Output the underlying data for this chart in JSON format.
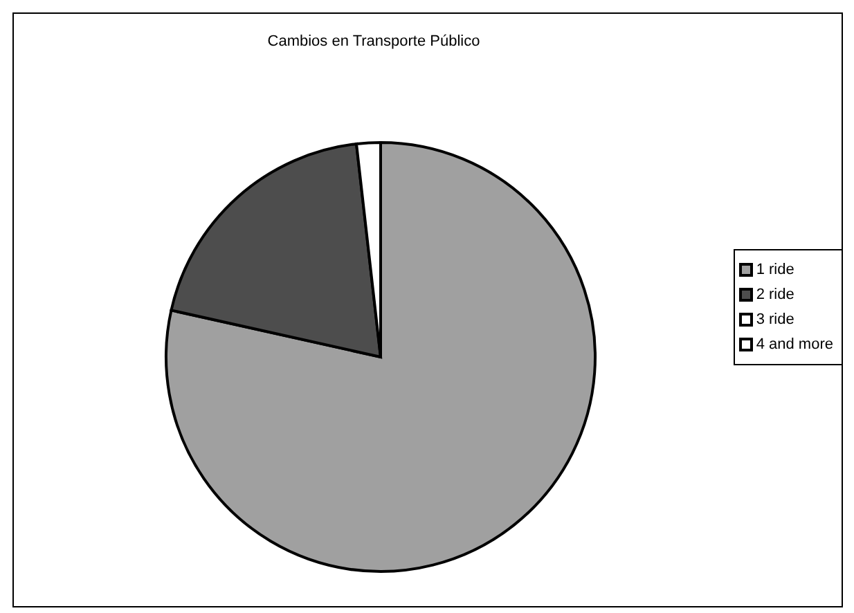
{
  "chart_data": {
    "type": "pie",
    "title": "Cambios en Transporte Público",
    "categories": [
      "1 ride",
      "2 ride",
      "3 ride",
      "4 and more"
    ],
    "values": [
      78.5,
      19.7,
      1.8,
      0
    ],
    "colors": [
      "#a0a0a0",
      "#4d4d4d",
      "#ffffff",
      "#ffffff"
    ],
    "legend": "right"
  }
}
